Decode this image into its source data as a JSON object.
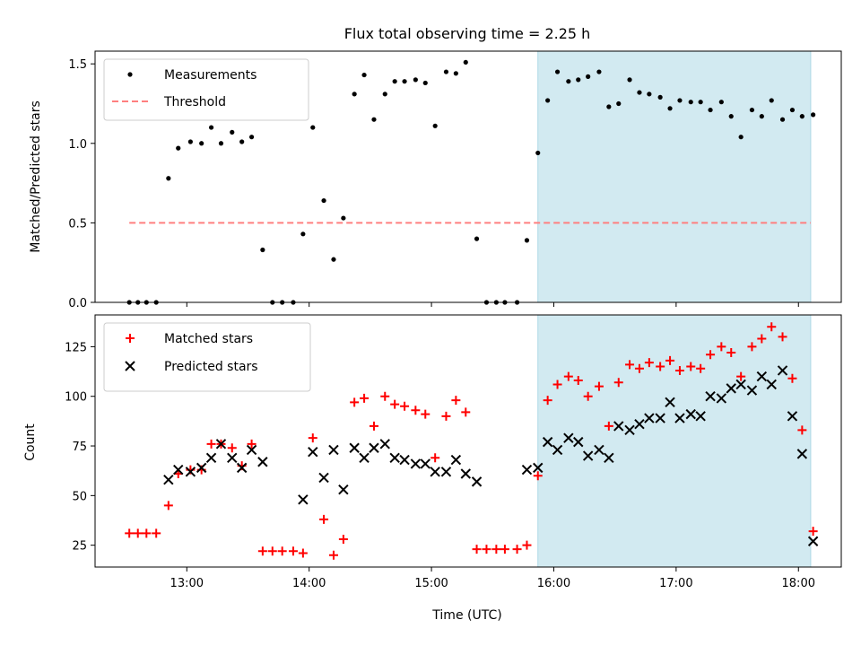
{
  "chart_data": {
    "title": "Flux total observing time = 2.25 h",
    "xlabel": "Time (UTC)",
    "x_ticks": [
      "13:00",
      "14:00",
      "15:00",
      "16:00",
      "17:00",
      "18:00"
    ],
    "x_tick_hours": [
      13,
      14,
      15,
      16,
      17,
      18
    ],
    "xlim_hours": [
      12.25,
      18.35
    ],
    "shaded_region_hours": [
      15.87,
      18.1
    ],
    "colors": {
      "shade": "#add8e6",
      "measurements": "#000000",
      "threshold": "#ff7f7f",
      "matched": "#ff0000",
      "predicted": "#000000"
    },
    "panels": [
      {
        "type": "scatter",
        "ylabel": "Matched/Predicted stars",
        "ylim": [
          0,
          1.58
        ],
        "y_ticks": [
          0.0,
          0.5,
          1.0,
          1.5
        ],
        "y_tick_labels": [
          "0.0",
          "0.5",
          "1.0",
          "1.5"
        ],
        "legend_position": "top-left",
        "series": [
          {
            "name": "Measurements",
            "marker": "dot",
            "points": [
              [
                12.53,
                0.0
              ],
              [
                12.6,
                0.0
              ],
              [
                12.67,
                0.0
              ],
              [
                12.75,
                0.0
              ],
              [
                12.85,
                0.78
              ],
              [
                12.93,
                0.97
              ],
              [
                13.03,
                1.01
              ],
              [
                13.12,
                1.0
              ],
              [
                13.2,
                1.1
              ],
              [
                13.28,
                1.0
              ],
              [
                13.37,
                1.07
              ],
              [
                13.45,
                1.01
              ],
              [
                13.53,
                1.04
              ],
              [
                13.62,
                0.33
              ],
              [
                13.7,
                0.0
              ],
              [
                13.78,
                0.0
              ],
              [
                13.87,
                0.0
              ],
              [
                13.95,
                0.43
              ],
              [
                14.03,
                1.1
              ],
              [
                14.12,
                0.64
              ],
              [
                14.2,
                0.27
              ],
              [
                14.28,
                0.53
              ],
              [
                14.37,
                1.31
              ],
              [
                14.45,
                1.43
              ],
              [
                14.53,
                1.15
              ],
              [
                14.62,
                1.31
              ],
              [
                14.7,
                1.39
              ],
              [
                14.78,
                1.39
              ],
              [
                14.87,
                1.4
              ],
              [
                14.95,
                1.38
              ],
              [
                15.03,
                1.11
              ],
              [
                15.12,
                1.45
              ],
              [
                15.2,
                1.44
              ],
              [
                15.28,
                1.51
              ],
              [
                15.37,
                0.4
              ],
              [
                15.45,
                0.0
              ],
              [
                15.53,
                0.0
              ],
              [
                15.6,
                0.0
              ],
              [
                15.7,
                0.0
              ],
              [
                15.78,
                0.39
              ],
              [
                15.87,
                0.94
              ],
              [
                15.95,
                1.27
              ],
              [
                16.03,
                1.45
              ],
              [
                16.12,
                1.39
              ],
              [
                16.2,
                1.4
              ],
              [
                16.28,
                1.42
              ],
              [
                16.37,
                1.45
              ],
              [
                16.45,
                1.23
              ],
              [
                16.53,
                1.25
              ],
              [
                16.62,
                1.4
              ],
              [
                16.7,
                1.32
              ],
              [
                16.78,
                1.31
              ],
              [
                16.87,
                1.29
              ],
              [
                16.95,
                1.22
              ],
              [
                17.03,
                1.27
              ],
              [
                17.12,
                1.26
              ],
              [
                17.2,
                1.26
              ],
              [
                17.28,
                1.21
              ],
              [
                17.37,
                1.26
              ],
              [
                17.45,
                1.17
              ],
              [
                17.53,
                1.04
              ],
              [
                17.62,
                1.21
              ],
              [
                17.7,
                1.17
              ],
              [
                17.78,
                1.27
              ],
              [
                17.87,
                1.15
              ],
              [
                17.95,
                1.21
              ],
              [
                18.03,
                1.17
              ],
              [
                18.12,
                1.18
              ]
            ]
          },
          {
            "name": "Threshold",
            "marker": "dashed-line",
            "points": [
              [
                12.53,
                0.5
              ],
              [
                18.1,
                0.5
              ]
            ]
          }
        ]
      },
      {
        "type": "scatter",
        "ylabel": "Count",
        "ylim": [
          14,
          141
        ],
        "y_ticks": [
          25,
          50,
          75,
          100,
          125
        ],
        "y_tick_labels": [
          "25",
          "50",
          "75",
          "100",
          "125"
        ],
        "legend_position": "top-left",
        "series": [
          {
            "name": "Matched stars",
            "marker": "plus",
            "points": [
              [
                12.53,
                31
              ],
              [
                12.6,
                31
              ],
              [
                12.67,
                31
              ],
              [
                12.75,
                31
              ],
              [
                12.85,
                45
              ],
              [
                12.93,
                61
              ],
              [
                13.03,
                63
              ],
              [
                13.12,
                63
              ],
              [
                13.2,
                76
              ],
              [
                13.28,
                76
              ],
              [
                13.37,
                74
              ],
              [
                13.45,
                65
              ],
              [
                13.53,
                76
              ],
              [
                13.62,
                22
              ],
              [
                13.7,
                22
              ],
              [
                13.78,
                22
              ],
              [
                13.87,
                22
              ],
              [
                13.95,
                21
              ],
              [
                14.03,
                79
              ],
              [
                14.12,
                38
              ],
              [
                14.2,
                20
              ],
              [
                14.28,
                28
              ],
              [
                14.37,
                97
              ],
              [
                14.45,
                99
              ],
              [
                14.53,
                85
              ],
              [
                14.62,
                100
              ],
              [
                14.7,
                96
              ],
              [
                14.78,
                95
              ],
              [
                14.87,
                93
              ],
              [
                14.95,
                91
              ],
              [
                15.03,
                69
              ],
              [
                15.12,
                90
              ],
              [
                15.2,
                98
              ],
              [
                15.28,
                92
              ],
              [
                15.37,
                23
              ],
              [
                15.45,
                23
              ],
              [
                15.53,
                23
              ],
              [
                15.6,
                23
              ],
              [
                15.7,
                23
              ],
              [
                15.78,
                25
              ],
              [
                15.87,
                60
              ],
              [
                15.95,
                98
              ],
              [
                16.03,
                106
              ],
              [
                16.12,
                110
              ],
              [
                16.2,
                108
              ],
              [
                16.28,
                100
              ],
              [
                16.37,
                105
              ],
              [
                16.45,
                85
              ],
              [
                16.53,
                107
              ],
              [
                16.62,
                116
              ],
              [
                16.7,
                114
              ],
              [
                16.78,
                117
              ],
              [
                16.87,
                115
              ],
              [
                16.95,
                118
              ],
              [
                17.03,
                113
              ],
              [
                17.12,
                115
              ],
              [
                17.2,
                114
              ],
              [
                17.28,
                121
              ],
              [
                17.37,
                125
              ],
              [
                17.45,
                122
              ],
              [
                17.53,
                110
              ],
              [
                17.62,
                125
              ],
              [
                17.7,
                129
              ],
              [
                17.78,
                135
              ],
              [
                17.87,
                130
              ],
              [
                17.95,
                109
              ],
              [
                18.03,
                83
              ],
              [
                18.12,
                32
              ]
            ]
          },
          {
            "name": "Predicted stars",
            "marker": "x",
            "points": [
              [
                12.85,
                58
              ],
              [
                12.93,
                63
              ],
              [
                13.03,
                62
              ],
              [
                13.12,
                64
              ],
              [
                13.2,
                69
              ],
              [
                13.28,
                76
              ],
              [
                13.37,
                69
              ],
              [
                13.45,
                64
              ],
              [
                13.53,
                73
              ],
              [
                13.62,
                67
              ],
              [
                13.95,
                48
              ],
              [
                14.03,
                72
              ],
              [
                14.12,
                59
              ],
              [
                14.2,
                73
              ],
              [
                14.28,
                53
              ],
              [
                14.37,
                74
              ],
              [
                14.45,
                69
              ],
              [
                14.53,
                74
              ],
              [
                14.62,
                76
              ],
              [
                14.7,
                69
              ],
              [
                14.78,
                68
              ],
              [
                14.87,
                66
              ],
              [
                14.95,
                66
              ],
              [
                15.03,
                62
              ],
              [
                15.12,
                62
              ],
              [
                15.2,
                68
              ],
              [
                15.28,
                61
              ],
              [
                15.37,
                57
              ],
              [
                15.78,
                63
              ],
              [
                15.87,
                64
              ],
              [
                15.95,
                77
              ],
              [
                16.03,
                73
              ],
              [
                16.12,
                79
              ],
              [
                16.2,
                77
              ],
              [
                16.28,
                70
              ],
              [
                16.37,
                73
              ],
              [
                16.45,
                69
              ],
              [
                16.53,
                85
              ],
              [
                16.62,
                83
              ],
              [
                16.7,
                86
              ],
              [
                16.78,
                89
              ],
              [
                16.87,
                89
              ],
              [
                16.95,
                97
              ],
              [
                17.03,
                89
              ],
              [
                17.12,
                91
              ],
              [
                17.2,
                90
              ],
              [
                17.28,
                100
              ],
              [
                17.37,
                99
              ],
              [
                17.45,
                104
              ],
              [
                17.53,
                106
              ],
              [
                17.62,
                103
              ],
              [
                17.7,
                110
              ],
              [
                17.78,
                106
              ],
              [
                17.87,
                113
              ],
              [
                17.95,
                90
              ],
              [
                18.03,
                71
              ],
              [
                18.12,
                27
              ]
            ]
          }
        ]
      }
    ]
  }
}
